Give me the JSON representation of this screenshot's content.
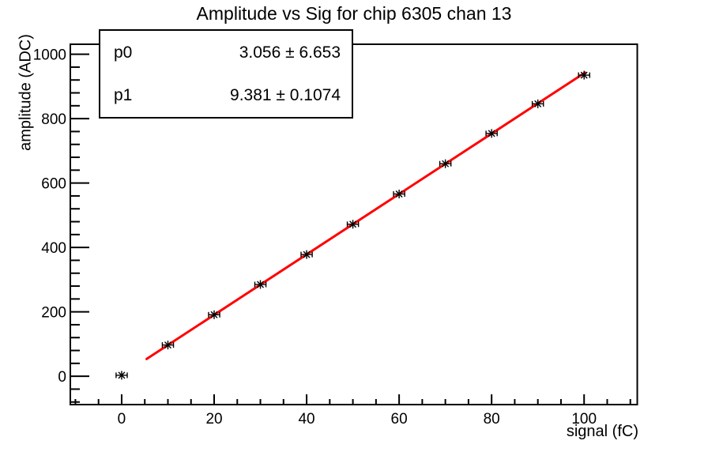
{
  "chart_data": {
    "type": "scatter",
    "title": "Amplitude vs Sig for chip 6305 chan 13",
    "xlabel": "signal (fC)",
    "ylabel": "amplitude (ADC)",
    "x": [
      0,
      10,
      20,
      30,
      40,
      50,
      60,
      70,
      80,
      90,
      100
    ],
    "y": [
      3,
      97,
      191,
      285,
      378,
      472,
      566,
      660,
      754,
      846,
      935
    ],
    "x_error_halfwidth_fc": 1,
    "xlim": [
      -11.1,
      111.5
    ],
    "ylim": [
      -88,
      1031
    ],
    "x_major_ticks": [
      0,
      20,
      40,
      60,
      80,
      100
    ],
    "y_major_ticks": [
      0,
      200,
      400,
      600,
      800,
      1000
    ],
    "x_minor_step": 5,
    "y_minor_step": 40,
    "grid": false,
    "legend_position": "none",
    "marker": {
      "style": "star-with-error-caps",
      "color": "#000000"
    },
    "fit": {
      "type": "linear",
      "p0": 3.056,
      "p1": 9.381,
      "draw_range": [
        5.4,
        100.2
      ],
      "color": "#ff0000",
      "width": 3
    },
    "stats_box": {
      "rows": [
        {
          "name": "p0",
          "value": "3.056 ± 6.653"
        },
        {
          "name": "p1",
          "value": "9.381 ± 0.1074"
        }
      ]
    },
    "colors": {
      "background": "#ffffff",
      "frame": "#000000",
      "text": "#000000",
      "fit_line": "#ff0000"
    }
  }
}
